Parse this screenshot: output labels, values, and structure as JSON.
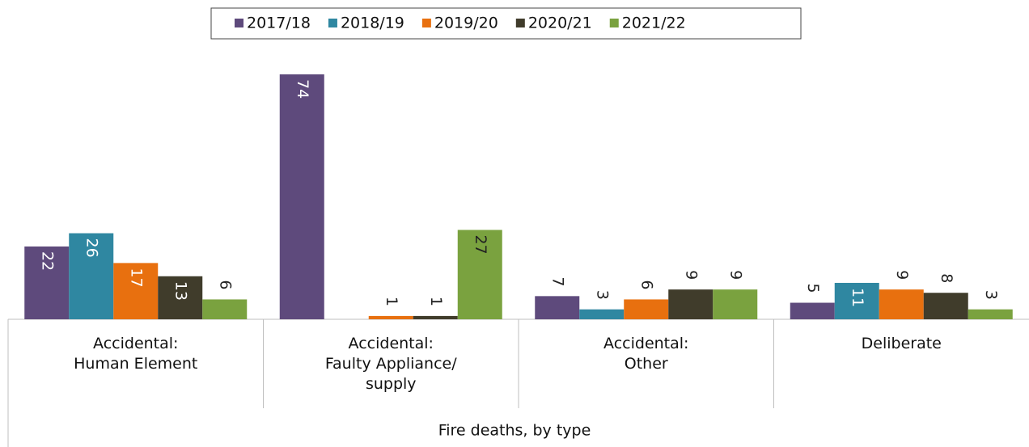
{
  "chart_data": {
    "type": "bar",
    "x_label": "Fire deaths, by type",
    "categories": [
      [
        "Accidental:",
        "Human Element"
      ],
      [
        "Accidental:",
        "Faulty Appliance/",
        "supply"
      ],
      [
        "Accidental:",
        "Other"
      ],
      [
        "Deliberate"
      ]
    ],
    "series": [
      {
        "name": "2017/18",
        "color": "#5e4a7c",
        "label_color": "#ffffff",
        "values": [
          22,
          74,
          7,
          5
        ]
      },
      {
        "name": "2018/19",
        "color": "#2f87a1",
        "label_color": "#ffffff",
        "values": [
          26,
          null,
          3,
          11
        ]
      },
      {
        "name": "2019/20",
        "color": "#e8700f",
        "label_color": "#ffffff",
        "values": [
          17,
          1,
          6,
          9
        ]
      },
      {
        "name": "2020/21",
        "color": "#403c2b",
        "label_color": "#ffffff",
        "values": [
          13,
          1,
          9,
          8
        ]
      },
      {
        "name": "2021/22",
        "color": "#7aa23f",
        "label_color": "#222222",
        "values": [
          6,
          27,
          9,
          3
        ]
      }
    ],
    "legend": "top"
  }
}
